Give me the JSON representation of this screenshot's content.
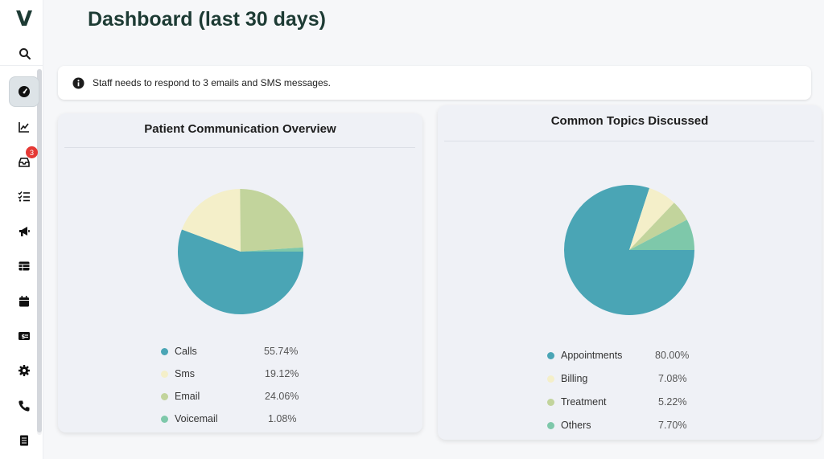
{
  "app": {
    "logo": "V"
  },
  "sidebar": {
    "notification_count": "3",
    "items": [
      {
        "name": "dashboard-icon"
      },
      {
        "name": "analytics-icon"
      },
      {
        "name": "inbox-icon"
      },
      {
        "name": "tasks-icon"
      },
      {
        "name": "campaigns-icon"
      },
      {
        "name": "table-icon"
      },
      {
        "name": "calendar-icon"
      },
      {
        "name": "billing-icon"
      },
      {
        "name": "settings-icon"
      },
      {
        "name": "phone-icon"
      },
      {
        "name": "documents-icon"
      }
    ]
  },
  "header": {
    "title": "Dashboard (last 30 days)"
  },
  "alert": {
    "text": "Staff needs to respond to 3 emails and SMS messages."
  },
  "colors": {
    "teal": "#4aa5b5",
    "cream": "#f4efc9",
    "sage": "#c2d49c",
    "mint": "#7ec8aa",
    "brand": "#1d3b34"
  },
  "chart_data": [
    {
      "type": "pie",
      "title": "Patient Communication Overview",
      "slices": [
        {
          "label": "Calls",
          "value": 55.74,
          "display": "55.74%",
          "color": "#4aa5b5"
        },
        {
          "label": "Sms",
          "value": 19.12,
          "display": "19.12%",
          "color": "#f4efc9"
        },
        {
          "label": "Email",
          "value": 24.06,
          "display": "24.06%",
          "color": "#c2d49c"
        },
        {
          "label": "Voicemail",
          "value": 1.08,
          "display": "1.08%",
          "color": "#7ec8aa"
        }
      ]
    },
    {
      "type": "pie",
      "title": "Common Topics Discussed",
      "slices": [
        {
          "label": "Appointments",
          "value": 80.0,
          "display": "80.00%",
          "color": "#4aa5b5"
        },
        {
          "label": "Billing",
          "value": 7.08,
          "display": "7.08%",
          "color": "#f4efc9"
        },
        {
          "label": "Treatment",
          "value": 5.22,
          "display": "5.22%",
          "color": "#c2d49c"
        },
        {
          "label": "Others",
          "value": 7.7,
          "display": "7.70%",
          "color": "#7ec8aa"
        }
      ]
    }
  ]
}
